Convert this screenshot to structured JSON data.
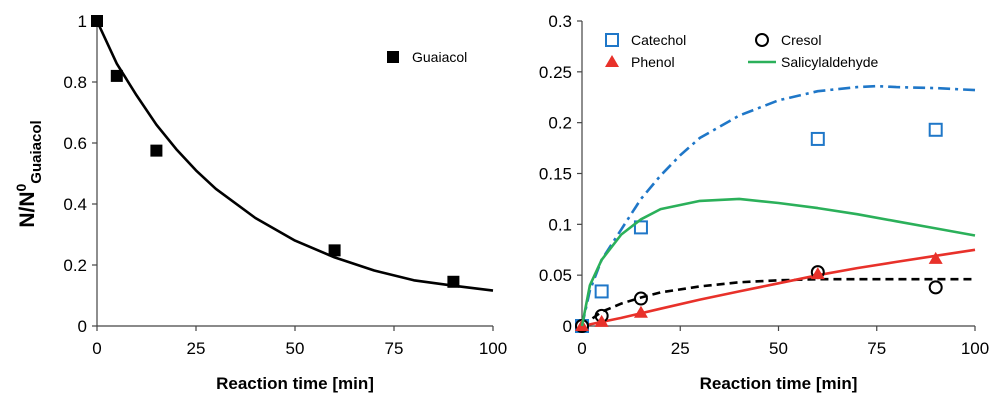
{
  "chart_data": [
    {
      "type": "scatter",
      "xlabel": "Reaction time [min]",
      "ylabel": {
        "main": "N/N",
        "sup": "0",
        "sub": "Guaiacol"
      },
      "xlim": [
        0,
        100
      ],
      "ylim": [
        0,
        1
      ],
      "x_ticks": [
        "0",
        "25",
        "50",
        "75",
        "100"
      ],
      "y_ticks": [
        "0",
        "0.2",
        "0.4",
        "0.6",
        "0.8",
        "1"
      ],
      "legend_position": "top-right",
      "series": [
        {
          "name": "Guaiacol",
          "marker": "filled-square",
          "color": "#000000",
          "x": [
            0,
            5,
            15,
            60,
            90
          ],
          "y": [
            1.0,
            0.82,
            0.575,
            0.248,
            0.145
          ]
        }
      ],
      "fit_curves": [
        {
          "series": "Guaiacol",
          "style": "solid",
          "color": "#000000",
          "x": [
            0,
            5,
            10,
            15,
            20,
            25,
            30,
            40,
            50,
            60,
            70,
            80,
            90,
            100
          ],
          "y": [
            1.0,
            0.86,
            0.756,
            0.66,
            0.58,
            0.51,
            0.45,
            0.354,
            0.28,
            0.225,
            0.182,
            0.15,
            0.132,
            0.116
          ]
        }
      ]
    },
    {
      "type": "scatter",
      "xlabel": "Reaction time [min]",
      "ylabel": "",
      "xlim": [
        0,
        100
      ],
      "ylim": [
        0,
        0.3
      ],
      "x_ticks": [
        "0",
        "25",
        "50",
        "75",
        "100"
      ],
      "y_ticks": [
        "0",
        "0.05",
        "0.1",
        "0.15",
        "0.2",
        "0.25",
        "0.3"
      ],
      "legend_position": "top",
      "series": [
        {
          "name": "Catechol",
          "marker": "open-square",
          "color": "#1f77c8",
          "x": [
            0,
            5,
            15,
            60,
            90
          ],
          "y": [
            0.0,
            0.034,
            0.097,
            0.184,
            0.193
          ]
        },
        {
          "name": "Cresol",
          "marker": "open-circle",
          "color": "#000000",
          "x": [
            0,
            5,
            15,
            60,
            90
          ],
          "y": [
            0.0,
            0.01,
            0.027,
            0.053,
            0.038
          ]
        },
        {
          "name": "Phenol",
          "marker": "filled-triangle",
          "color": "#e8312a",
          "x": [
            0,
            5,
            15,
            60,
            90
          ],
          "y": [
            0.0,
            0.004,
            0.013,
            0.051,
            0.066
          ]
        },
        {
          "name": "Salicylaldehyde",
          "marker": "line",
          "color": "#2bb05a",
          "x": [
            0,
            2,
            5,
            10,
            15,
            20,
            30,
            40,
            50,
            60,
            70,
            80,
            90,
            100
          ],
          "y": [
            0.0,
            0.04,
            0.065,
            0.09,
            0.105,
            0.115,
            0.123,
            0.125,
            0.121,
            0.116,
            0.11,
            0.103,
            0.096,
            0.089
          ]
        }
      ],
      "fit_curves": [
        {
          "series": "Catechol",
          "style": "dash-dot",
          "color": "#1f77c8",
          "x": [
            0,
            2,
            5,
            10,
            15,
            20,
            25,
            30,
            40,
            50,
            60,
            70,
            75,
            80,
            90,
            100
          ],
          "y": [
            0.0,
            0.035,
            0.065,
            0.095,
            0.125,
            0.148,
            0.168,
            0.185,
            0.207,
            0.222,
            0.231,
            0.235,
            0.236,
            0.235,
            0.234,
            0.232
          ]
        },
        {
          "series": "Cresol",
          "style": "dashed",
          "color": "#000000",
          "x": [
            0,
            5,
            10,
            15,
            20,
            30,
            40,
            50,
            60,
            70,
            80,
            90,
            100
          ],
          "y": [
            0.0,
            0.014,
            0.022,
            0.028,
            0.033,
            0.039,
            0.043,
            0.045,
            0.046,
            0.046,
            0.046,
            0.046,
            0.046
          ]
        },
        {
          "series": "Phenol",
          "style": "solid",
          "color": "#e8312a",
          "x": [
            0,
            10,
            20,
            30,
            40,
            50,
            60,
            70,
            80,
            90,
            100
          ],
          "y": [
            0.0,
            0.008,
            0.017,
            0.026,
            0.034,
            0.042,
            0.05,
            0.057,
            0.063,
            0.069,
            0.075
          ]
        }
      ]
    }
  ]
}
